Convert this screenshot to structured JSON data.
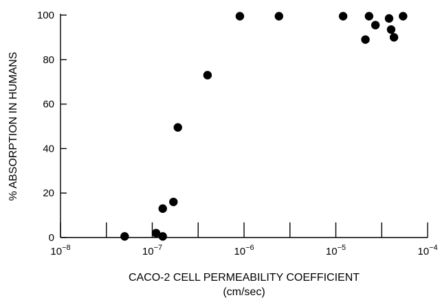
{
  "chart_data": {
    "type": "scatter",
    "xlabel": "CACO-2 CELL PERMEABILITY COEFFICIENT",
    "xlabel_units": "(cm/sec)",
    "ylabel": "% ABSORPTION IN HUMANS",
    "x_scale": "log",
    "xlim": [
      "1e-8",
      "1e-4"
    ],
    "ylim": [
      0,
      100
    ],
    "grid": false,
    "x_ticks": [
      {
        "value": "1e-8",
        "base": "10",
        "exp": "−8"
      },
      {
        "value": "1e-7",
        "base": "10",
        "exp": "−7"
      },
      {
        "value": "1e-6",
        "base": "10",
        "exp": "−6"
      },
      {
        "value": "1e-5",
        "base": "10",
        "exp": "−5"
      },
      {
        "value": "1e-4",
        "base": "10",
        "exp": "−4"
      }
    ],
    "y_ticks": [
      "0",
      "20",
      "40",
      "60",
      "80",
      "100"
    ],
    "points": [
      {
        "x": 5e-08,
        "y": 0.5
      },
      {
        "x": 1.1e-07,
        "y": 2
      },
      {
        "x": 1.3e-07,
        "y": 0.5
      },
      {
        "x": 1.3e-07,
        "y": 13
      },
      {
        "x": 1.7e-07,
        "y": 16
      },
      {
        "x": 1.9e-07,
        "y": 49.5
      },
      {
        "x": 4e-07,
        "y": 73
      },
      {
        "x": 9e-07,
        "y": 99.5
      },
      {
        "x": 2.4e-06,
        "y": 99.5
      },
      {
        "x": 1.2e-05,
        "y": 99.5
      },
      {
        "x": 2.3e-05,
        "y": 99.5
      },
      {
        "x": 2.1e-05,
        "y": 89
      },
      {
        "x": 2.7e-05,
        "y": 95.5
      },
      {
        "x": 3.8e-05,
        "y": 98.5
      },
      {
        "x": 4e-05,
        "y": 93.5
      },
      {
        "x": 4.3e-05,
        "y": 90
      },
      {
        "x": 5.4e-05,
        "y": 99.5
      }
    ]
  }
}
